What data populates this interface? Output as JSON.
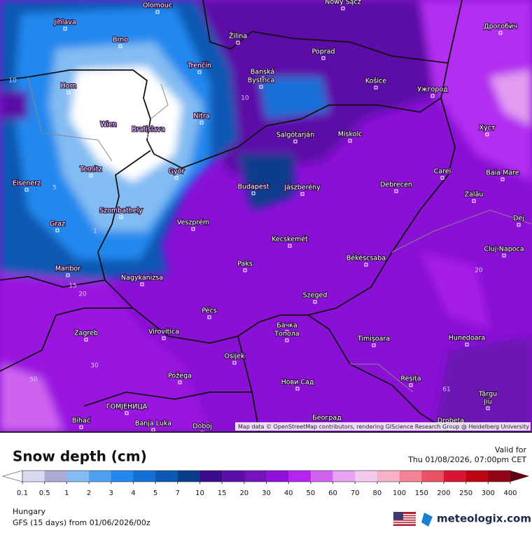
{
  "map": {
    "cities": [
      "Olomouc",
      "Nowy Sącz",
      "Jihlava",
      "Žilina",
      "Дрогобич",
      "Brno",
      "Poprad",
      "Trenčín",
      "Banská",
      "Bystrica",
      "Košice",
      "Ужгород",
      "Horn",
      "Nitra",
      "Wien",
      "Bratislava",
      "Salgótarján",
      "Miskolc",
      "Хуст",
      "Ternitz",
      "Győr",
      "Carei",
      "Baia Mare",
      "Eisenerz",
      "Budapest",
      "Jászberény",
      "Debrecen",
      "Zalău",
      "Szombathely",
      "Graz",
      "Veszprém",
      "Dej",
      "Kecskemét",
      "Cluj-Napoca",
      "Maribor",
      "Paks",
      "Békéscsaba",
      "Nagykanizsa",
      "Szeged",
      "Pécs",
      "Zagreb",
      "Virovitica",
      "Бачка",
      "Топола",
      "Timișoara",
      "Hunedoara",
      "Osijek",
      "Požega",
      "Reșița",
      "Нови Сад",
      "Târgu",
      "Jiu",
      "ГОМЈЕНИЦА",
      "Bihać",
      "Banja Luka",
      "Doboj",
      "Београд",
      "Drobeta"
    ],
    "contour_labels": [
      "10",
      "5",
      "1",
      "15",
      "20",
      "30",
      "50",
      "20",
      "10",
      "61"
    ],
    "attribution": "Map data © OpenStreetMap contributors, rendering GIScience Research Group @ Heidelberg University"
  },
  "legend": {
    "title": "Snow depth (cm)",
    "labels": [
      "0.1",
      "0.5",
      "1",
      "2",
      "3",
      "4",
      "5",
      "7",
      "10",
      "15",
      "20",
      "30",
      "40",
      "50",
      "60",
      "70",
      "80",
      "100",
      "150",
      "200",
      "250",
      "300",
      "400"
    ],
    "colors": [
      "#d9d9f2",
      "#aaaad2",
      "#82bcf2",
      "#50a2f0",
      "#2088ee",
      "#1270d6",
      "#0c58b2",
      "#0a3c8a",
      "#3c0c8c",
      "#5a10a6",
      "#7412bc",
      "#9012d8",
      "#b424ee",
      "#d262f0",
      "#e8a2f2",
      "#f2c8ec",
      "#f8b2c8",
      "#f28294",
      "#e85264",
      "#d81432",
      "#b80612",
      "#900614"
    ],
    "under_color": "#ffffff",
    "over_color": "#600018"
  },
  "footer": {
    "valid_label": "Valid for",
    "valid_time": "Thu 01/08/2026, 07:00pm CET",
    "region": "Hungary",
    "model": "GFS (15 days) from  01/06/2026/00z",
    "brand": "meteologix.com"
  }
}
